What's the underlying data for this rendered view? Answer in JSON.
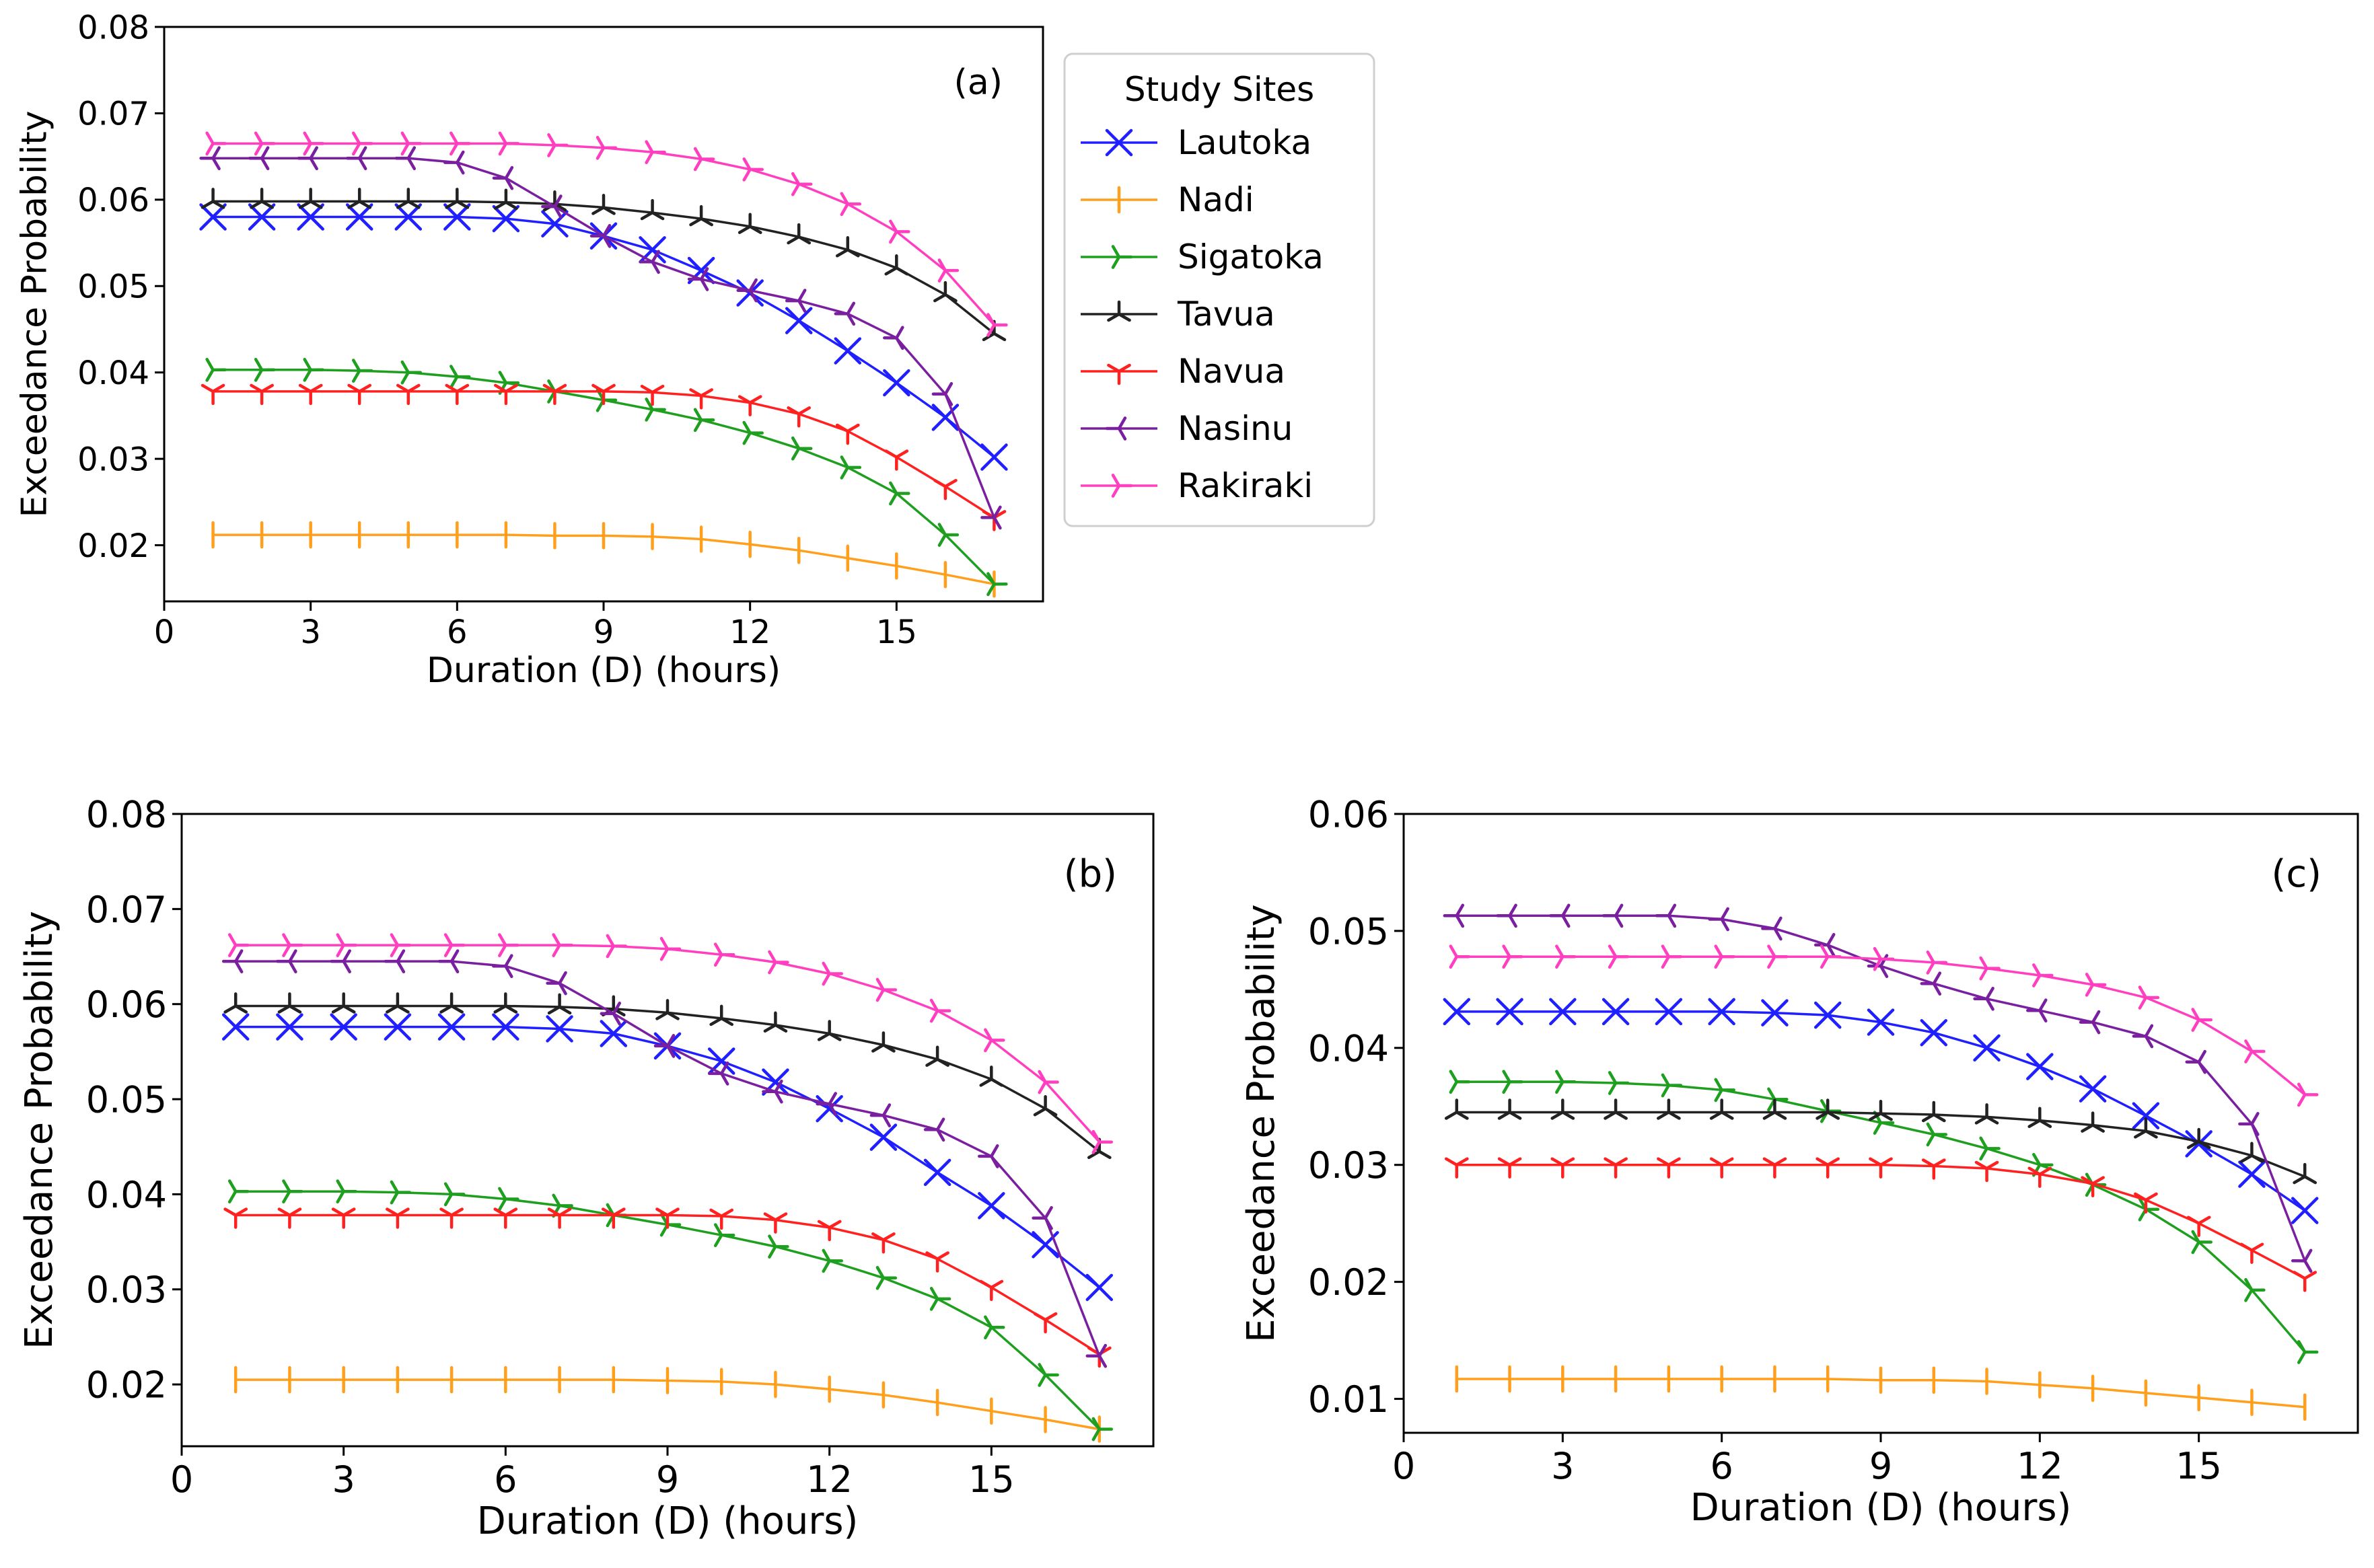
{
  "chart_data": [
    {
      "panel": "(a)",
      "type": "line",
      "xlabel": "Duration (D) (hours)",
      "ylabel": "Exceedance Probability",
      "xlim": [
        0,
        18
      ],
      "ylim": [
        0.0135,
        0.08
      ],
      "xticks": [
        0,
        3,
        6,
        9,
        12,
        15
      ],
      "yticks": [
        0.02,
        0.03,
        0.04,
        0.05,
        0.06,
        0.07,
        0.08
      ],
      "x": [
        1,
        2,
        3,
        4,
        5,
        6,
        7,
        8,
        9,
        10,
        11,
        12,
        13,
        14,
        15,
        16,
        17
      ],
      "series": [
        {
          "name": "Lautoka",
          "color": "#1f1fff",
          "marker": "x",
          "values": [
            0.058,
            0.058,
            0.058,
            0.058,
            0.058,
            0.058,
            0.0578,
            0.0572,
            0.0558,
            0.0542,
            0.0518,
            0.0492,
            0.046,
            0.0425,
            0.0388,
            0.0348,
            0.0302
          ]
        },
        {
          "name": "Nadi",
          "color": "#ff9f1c",
          "marker": "vline",
          "values": [
            0.0212,
            0.0212,
            0.0212,
            0.0212,
            0.0212,
            0.0212,
            0.0212,
            0.0211,
            0.0211,
            0.021,
            0.0207,
            0.0201,
            0.0194,
            0.0185,
            0.0176,
            0.0166,
            0.0155
          ]
        },
        {
          "name": "Sigatoka",
          "color": "#1f9f1f",
          "marker": "tri_right",
          "values": [
            0.0403,
            0.0403,
            0.0403,
            0.0402,
            0.04,
            0.0395,
            0.0388,
            0.0378,
            0.0368,
            0.0357,
            0.0345,
            0.033,
            0.0312,
            0.029,
            0.026,
            0.0212,
            0.0155
          ]
        },
        {
          "name": "Tavua",
          "color": "#222222",
          "marker": "tri_up",
          "values": [
            0.0598,
            0.0598,
            0.0598,
            0.0598,
            0.0598,
            0.0598,
            0.0597,
            0.0595,
            0.0591,
            0.0585,
            0.0578,
            0.0569,
            0.0557,
            0.0542,
            0.0521,
            0.049,
            0.0445
          ]
        },
        {
          "name": "Navua",
          "color": "#ff2020",
          "marker": "tri_down",
          "values": [
            0.0378,
            0.0378,
            0.0378,
            0.0378,
            0.0378,
            0.0378,
            0.0378,
            0.0378,
            0.0378,
            0.0377,
            0.0373,
            0.0365,
            0.0352,
            0.0332,
            0.0302,
            0.0268,
            0.0232
          ]
        },
        {
          "name": "Nasinu",
          "color": "#7a1fa0",
          "marker": "tri_left",
          "values": [
            0.0648,
            0.0648,
            0.0648,
            0.0648,
            0.0648,
            0.0643,
            0.0625,
            0.0592,
            0.0558,
            0.0528,
            0.0508,
            0.0495,
            0.0483,
            0.0468,
            0.044,
            0.0375,
            0.0232
          ]
        },
        {
          "name": "Rakiraki",
          "color": "#ff3fbf",
          "marker": "tri_right",
          "values": [
            0.0665,
            0.0665,
            0.0665,
            0.0665,
            0.0665,
            0.0665,
            0.0665,
            0.0663,
            0.066,
            0.0655,
            0.0647,
            0.0635,
            0.0618,
            0.0595,
            0.0563,
            0.0518,
            0.0455
          ]
        }
      ],
      "legend": {
        "title": "Study Sites",
        "placement": "outside-right"
      }
    },
    {
      "panel": "(b)",
      "type": "line",
      "xlabel": "Duration (D) (hours)",
      "ylabel": "Exceedance Probability",
      "xlim": [
        0,
        18
      ],
      "ylim": [
        0.0135,
        0.08
      ],
      "xticks": [
        0,
        3,
        6,
        9,
        12,
        15
      ],
      "yticks": [
        0.02,
        0.03,
        0.04,
        0.05,
        0.06,
        0.07,
        0.08
      ],
      "x": [
        1,
        2,
        3,
        4,
        5,
        6,
        7,
        8,
        9,
        10,
        11,
        12,
        13,
        14,
        15,
        16,
        17
      ],
      "series": [
        {
          "name": "Lautoka",
          "color": "#1f1fff",
          "marker": "x",
          "values": [
            0.0576,
            0.0576,
            0.0576,
            0.0576,
            0.0576,
            0.0576,
            0.0574,
            0.0569,
            0.0556,
            0.054,
            0.0518,
            0.049,
            0.046,
            0.0423,
            0.0388,
            0.0347,
            0.0302
          ]
        },
        {
          "name": "Nadi",
          "color": "#ff9f1c",
          "marker": "vline",
          "values": [
            0.0205,
            0.0205,
            0.0205,
            0.0205,
            0.0205,
            0.0205,
            0.0205,
            0.0205,
            0.0204,
            0.0203,
            0.02,
            0.0195,
            0.0189,
            0.0181,
            0.0172,
            0.0163,
            0.0153
          ]
        },
        {
          "name": "Sigatoka",
          "color": "#1f9f1f",
          "marker": "tri_right",
          "values": [
            0.0403,
            0.0403,
            0.0403,
            0.0402,
            0.04,
            0.0395,
            0.0388,
            0.0378,
            0.0368,
            0.0357,
            0.0345,
            0.033,
            0.0312,
            0.029,
            0.026,
            0.021,
            0.0153
          ]
        },
        {
          "name": "Tavua",
          "color": "#222222",
          "marker": "tri_up",
          "values": [
            0.0598,
            0.0598,
            0.0598,
            0.0598,
            0.0598,
            0.0598,
            0.0597,
            0.0595,
            0.0591,
            0.0585,
            0.0578,
            0.0569,
            0.0557,
            0.0542,
            0.0521,
            0.049,
            0.0445
          ]
        },
        {
          "name": "Navua",
          "color": "#ff2020",
          "marker": "tri_down",
          "values": [
            0.0378,
            0.0378,
            0.0378,
            0.0378,
            0.0378,
            0.0378,
            0.0378,
            0.0378,
            0.0378,
            0.0377,
            0.0373,
            0.0365,
            0.0352,
            0.0332,
            0.0302,
            0.0268,
            0.0232
          ]
        },
        {
          "name": "Nasinu",
          "color": "#7a1fa0",
          "marker": "tri_left",
          "values": [
            0.0645,
            0.0645,
            0.0645,
            0.0645,
            0.0645,
            0.064,
            0.0622,
            0.059,
            0.0556,
            0.0527,
            0.0508,
            0.0495,
            0.0483,
            0.0468,
            0.044,
            0.0375,
            0.023
          ]
        },
        {
          "name": "Rakiraki",
          "color": "#ff3fbf",
          "marker": "tri_right",
          "values": [
            0.0662,
            0.0662,
            0.0662,
            0.0662,
            0.0662,
            0.0662,
            0.0662,
            0.0661,
            0.0658,
            0.0652,
            0.0644,
            0.0632,
            0.0615,
            0.0593,
            0.0562,
            0.0518,
            0.0455
          ]
        }
      ]
    },
    {
      "panel": "(c)",
      "type": "line",
      "xlabel": "Duration (D) (hours)",
      "ylabel": "Exceedance Probability",
      "xlim": [
        0,
        18
      ],
      "ylim": [
        0.0071,
        0.06
      ],
      "xticks": [
        0,
        3,
        6,
        9,
        12,
        15
      ],
      "yticks": [
        0.01,
        0.02,
        0.03,
        0.04,
        0.05,
        0.06
      ],
      "x": [
        1,
        2,
        3,
        4,
        5,
        6,
        7,
        8,
        9,
        10,
        11,
        12,
        13,
        14,
        15,
        16,
        17
      ],
      "series": [
        {
          "name": "Lautoka",
          "color": "#1f1fff",
          "marker": "x",
          "values": [
            0.0431,
            0.0431,
            0.0431,
            0.0431,
            0.0431,
            0.0431,
            0.043,
            0.0428,
            0.0422,
            0.0413,
            0.04,
            0.0384,
            0.0365,
            0.0342,
            0.0318,
            0.0292,
            0.0261
          ]
        },
        {
          "name": "Nadi",
          "color": "#ff9f1c",
          "marker": "vline",
          "values": [
            0.0117,
            0.0117,
            0.0117,
            0.0117,
            0.0117,
            0.0117,
            0.0117,
            0.0117,
            0.0116,
            0.0116,
            0.0115,
            0.0112,
            0.0109,
            0.0105,
            0.0101,
            0.0097,
            0.0093
          ]
        },
        {
          "name": "Sigatoka",
          "color": "#1f9f1f",
          "marker": "tri_right",
          "values": [
            0.0371,
            0.0371,
            0.0371,
            0.037,
            0.0368,
            0.0364,
            0.0356,
            0.0346,
            0.0336,
            0.0326,
            0.0314,
            0.03,
            0.0283,
            0.0262,
            0.0234,
            0.0193,
            0.014
          ]
        },
        {
          "name": "Tavua",
          "color": "#222222",
          "marker": "tri_up",
          "values": [
            0.0345,
            0.0345,
            0.0345,
            0.0345,
            0.0345,
            0.0345,
            0.0345,
            0.0345,
            0.0344,
            0.0343,
            0.0341,
            0.0338,
            0.0334,
            0.0329,
            0.032,
            0.0308,
            0.029
          ]
        },
        {
          "name": "Navua",
          "color": "#ff2020",
          "marker": "tri_down",
          "values": [
            0.03,
            0.03,
            0.03,
            0.03,
            0.03,
            0.03,
            0.03,
            0.03,
            0.03,
            0.0299,
            0.0297,
            0.0292,
            0.0284,
            0.027,
            0.025,
            0.0227,
            0.0203
          ]
        },
        {
          "name": "Nasinu",
          "color": "#7a1fa0",
          "marker": "tri_left",
          "values": [
            0.0513,
            0.0513,
            0.0513,
            0.0513,
            0.0513,
            0.051,
            0.0502,
            0.0488,
            0.047,
            0.0455,
            0.0442,
            0.0432,
            0.0422,
            0.041,
            0.0388,
            0.0335,
            0.0218
          ]
        },
        {
          "name": "Rakiraki",
          "color": "#ff3fbf",
          "marker": "tri_right",
          "values": [
            0.0478,
            0.0478,
            0.0478,
            0.0478,
            0.0478,
            0.0478,
            0.0478,
            0.0478,
            0.0476,
            0.0473,
            0.0468,
            0.0462,
            0.0454,
            0.0443,
            0.0424,
            0.0397,
            0.036
          ]
        }
      ]
    }
  ]
}
